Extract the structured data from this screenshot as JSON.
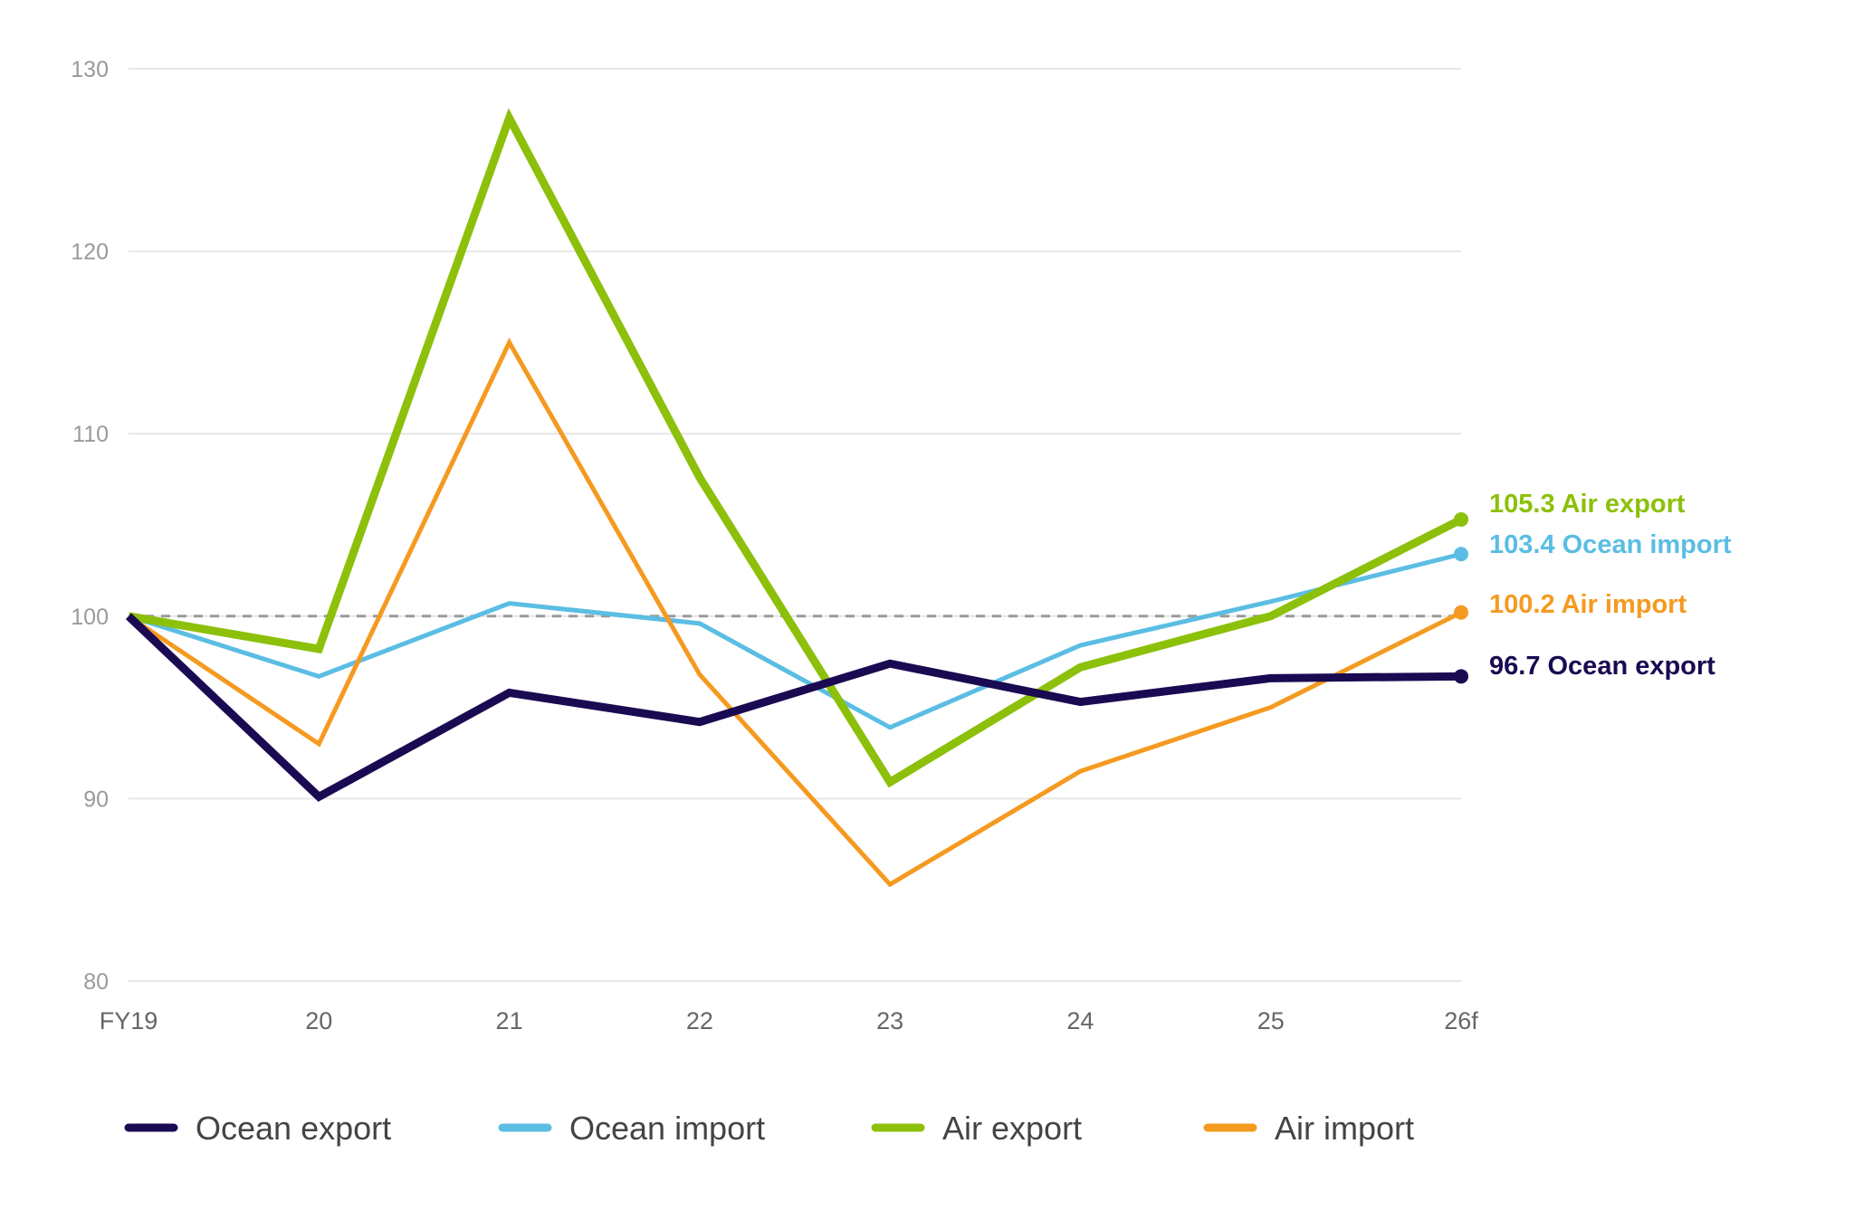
{
  "chart_data": {
    "type": "line",
    "title": "",
    "xlabel": "",
    "ylabel": "",
    "categories": [
      "FY19",
      "20",
      "21",
      "22",
      "23",
      "24",
      "25",
      "26f"
    ],
    "ylim": [
      80,
      130
    ],
    "yticks": [
      80,
      90,
      100,
      110,
      120,
      130
    ],
    "grid": true,
    "reference_line": {
      "value": 100,
      "style": "dashed",
      "color": "#9a9a9a"
    },
    "legend_position": "bottom",
    "series": [
      {
        "name": "Ocean export",
        "color": "#1a0a52",
        "width": 9,
        "values": [
          100,
          90.1,
          95.8,
          94.2,
          97.4,
          95.3,
          96.6,
          96.7
        ],
        "end_label": "96.7 Ocean export"
      },
      {
        "name": "Ocean import",
        "color": "#5bbde3",
        "width": 5,
        "values": [
          100,
          96.7,
          100.7,
          99.6,
          93.9,
          98.4,
          100.8,
          103.4
        ],
        "end_label": "103.4 Ocean import"
      },
      {
        "name": "Air export",
        "color": "#8cc00a",
        "width": 9,
        "values": [
          100,
          98.2,
          127.3,
          107.6,
          90.9,
          97.2,
          100,
          105.3
        ],
        "end_label": "105.3 Air export"
      },
      {
        "name": "Air import",
        "color": "#f59a20",
        "width": 5,
        "values": [
          100,
          93,
          115,
          96.8,
          85.3,
          91.5,
          95,
          100.2
        ],
        "end_label": "100.2 Air import"
      }
    ]
  }
}
